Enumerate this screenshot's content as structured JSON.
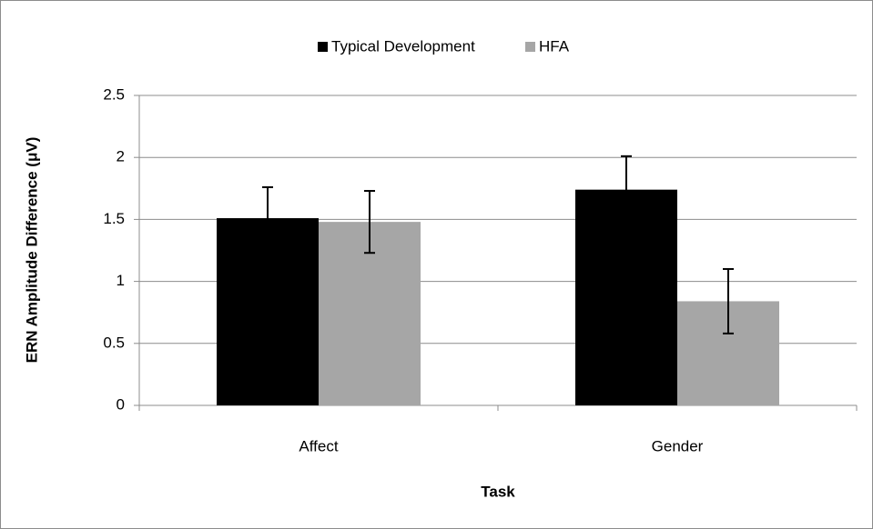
{
  "chart_data": {
    "type": "bar",
    "x_label": "Task",
    "y_label": "ERN Amplitude Difference (μV)",
    "categories": [
      "Affect",
      "Gender"
    ],
    "series": [
      {
        "name": "Typical Development",
        "color": "#000000",
        "values": [
          1.51,
          1.74
        ],
        "errors": [
          0.25,
          0.27
        ]
      },
      {
        "name": "HFA",
        "color": "#a6a6a6",
        "values": [
          1.48,
          0.84
        ],
        "errors": [
          0.25,
          0.26
        ]
      }
    ],
    "ylim": [
      0,
      2.5
    ],
    "yticks": [
      0,
      0.5,
      1,
      1.5,
      2,
      2.5
    ],
    "grid": true,
    "legend": "top"
  }
}
